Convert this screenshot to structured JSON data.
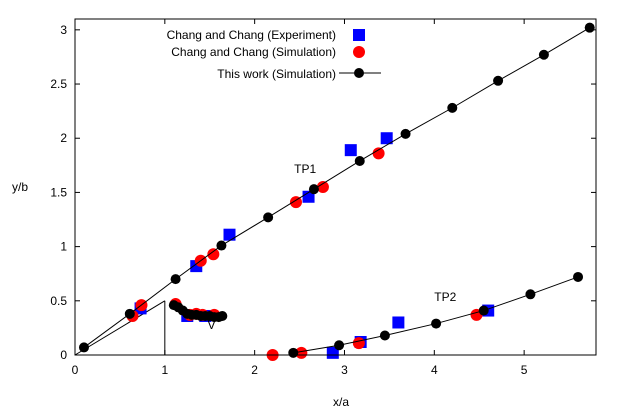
{
  "chart_data": {
    "type": "scatter",
    "title": "",
    "xlabel": "x/a",
    "ylabel": "y/b",
    "xlim": [
      0,
      5.8
    ],
    "ylim": [
      0,
      3.1
    ],
    "xticks": [
      0,
      1,
      2,
      3,
      4,
      5
    ],
    "yticks": [
      0,
      0.5,
      1,
      1.5,
      2,
      2.5,
      3
    ],
    "xtick_labels": [
      "0",
      "1",
      "2",
      "3",
      "4",
      "5"
    ],
    "ytick_labels": [
      "0",
      "0.5",
      "1",
      "1.5",
      "2",
      "2.5",
      "3"
    ],
    "grid": false,
    "legend_position": "top-center",
    "colors": {
      "experiment": "#0000ff",
      "simulation": "#ff0000",
      "this_work": "#000000"
    },
    "series": [
      {
        "name": "Chang and Chang (Experiment)",
        "marker": "square",
        "color": "#0000ff",
        "points": [
          [
            0.73,
            0.43
          ],
          [
            1.35,
            0.82
          ],
          [
            1.72,
            1.11
          ],
          [
            2.6,
            1.46
          ],
          [
            3.07,
            1.89
          ],
          [
            3.47,
            2.0
          ],
          [
            1.25,
            0.36
          ],
          [
            1.45,
            0.36
          ],
          [
            2.87,
            0.02
          ],
          [
            3.18,
            0.12
          ],
          [
            3.6,
            0.3
          ],
          [
            4.6,
            0.41
          ]
        ]
      },
      {
        "name": "Chang and Chang (Simulation)",
        "marker": "circle",
        "color": "#ff0000",
        "points": [
          [
            0.64,
            0.36
          ],
          [
            0.74,
            0.46
          ],
          [
            1.4,
            0.87
          ],
          [
            1.54,
            0.93
          ],
          [
            2.46,
            1.41
          ],
          [
            2.76,
            1.55
          ],
          [
            3.38,
            1.86
          ],
          [
            1.12,
            0.47
          ],
          [
            1.28,
            0.37
          ],
          [
            1.35,
            0.38
          ],
          [
            1.42,
            0.37
          ],
          [
            1.55,
            0.37
          ],
          [
            2.2,
            0.0
          ],
          [
            2.52,
            0.02
          ],
          [
            3.16,
            0.11
          ],
          [
            4.47,
            0.37
          ]
        ]
      },
      {
        "name": "This work (Simulation)",
        "marker": "circle-line",
        "color": "#000000",
        "segments": [
          [
            [
              0.1,
              0.07
            ],
            [
              0.61,
              0.38
            ],
            [
              1.12,
              0.7
            ],
            [
              1.63,
              1.01
            ],
            [
              2.15,
              1.27
            ],
            [
              2.66,
              1.53
            ],
            [
              3.17,
              1.79
            ],
            [
              3.68,
              2.04
            ],
            [
              4.2,
              2.28
            ],
            [
              4.71,
              2.53
            ],
            [
              5.22,
              2.77
            ],
            [
              5.73,
              3.02
            ]
          ],
          [
            [
              1.1,
              0.46
            ],
            [
              1.15,
              0.44
            ],
            [
              1.2,
              0.41
            ],
            [
              1.25,
              0.38
            ],
            [
              1.3,
              0.37
            ],
            [
              1.35,
              0.37
            ],
            [
              1.4,
              0.36
            ],
            [
              1.45,
              0.36
            ],
            [
              1.5,
              0.36
            ],
            [
              1.55,
              0.35
            ],
            [
              1.6,
              0.35
            ],
            [
              1.64,
              0.36
            ]
          ],
          [
            [
              2.43,
              0.02
            ],
            [
              2.94,
              0.09
            ],
            [
              3.45,
              0.18
            ],
            [
              4.02,
              0.29
            ],
            [
              4.55,
              0.41
            ],
            [
              5.07,
              0.56
            ],
            [
              5.6,
              0.72
            ]
          ]
        ]
      }
    ],
    "reference_lines": [
      {
        "from": [
          0,
          0
        ],
        "to": [
          1.0,
          0.5
        ]
      },
      {
        "from": [
          1.0,
          0.5
        ],
        "to": [
          1.0,
          0
        ]
      }
    ],
    "annotations": [
      {
        "text": "TP1",
        "x": 2.44,
        "y": 1.68
      },
      {
        "text": "TP2",
        "x": 4.0,
        "y": 0.5
      },
      {
        "text": "V",
        "x": 1.52,
        "y": 0.24
      }
    ]
  }
}
